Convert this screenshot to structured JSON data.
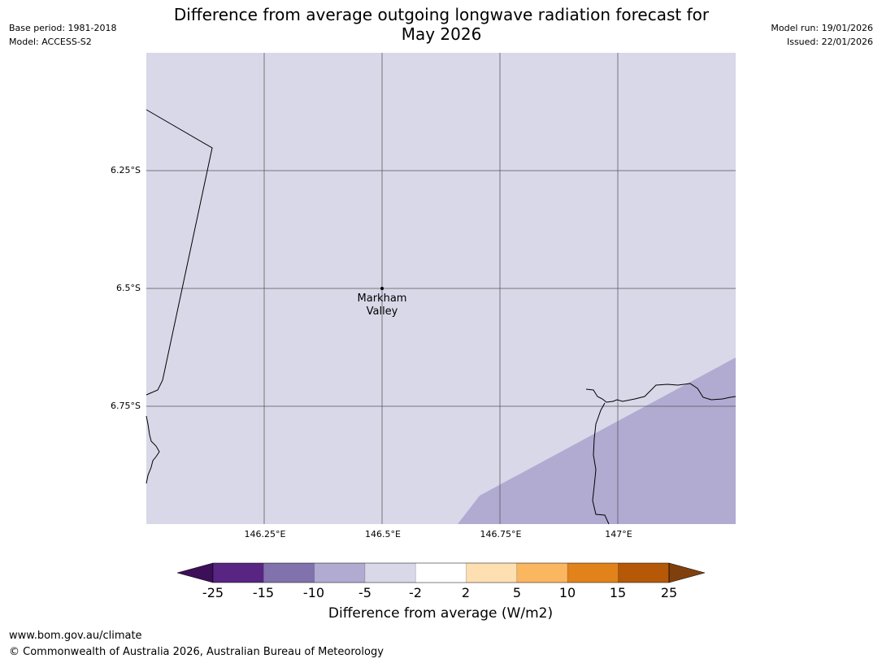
{
  "header": {
    "base_period": "Base period: 1981-2018",
    "model": "Model: ACCESS-S2",
    "model_run": "Model run: 19/01/2026",
    "issued": "Issued: 22/01/2026",
    "title_line1": "Difference from average outgoing longwave radiation forecast for",
    "title_line2": "May 2026"
  },
  "map": {
    "y_ticks": [
      "6.25°S",
      "6.5°S",
      "6.75°S"
    ],
    "x_ticks": [
      "146.25°E",
      "146.5°E",
      "146.75°E",
      "147°E"
    ],
    "place_line1": "Markham",
    "place_line2": "Valley",
    "colors": {
      "background_category": "#d8d8e9",
      "lower_category": "#b1abd2",
      "gridline": "#555555",
      "coastline": "#000000"
    }
  },
  "colorbar": {
    "ticks": [
      "-25",
      "-15",
      "-10",
      "-5",
      "-2",
      "2",
      "5",
      "10",
      "15",
      "25"
    ],
    "label": "Difference from average (W/m2)",
    "colors": [
      "#3d0f58",
      "#582583",
      "#8172ae",
      "#b1abd2",
      "#d8d8e9",
      "#ffffff",
      "#fedfb1",
      "#fbb660",
      "#e1821b",
      "#b55808",
      "#80400e"
    ]
  },
  "footer": {
    "url": "www.bom.gov.au/climate",
    "copyright": "© Commonwealth of Australia 2026, Australian Bureau of Meteorology"
  }
}
